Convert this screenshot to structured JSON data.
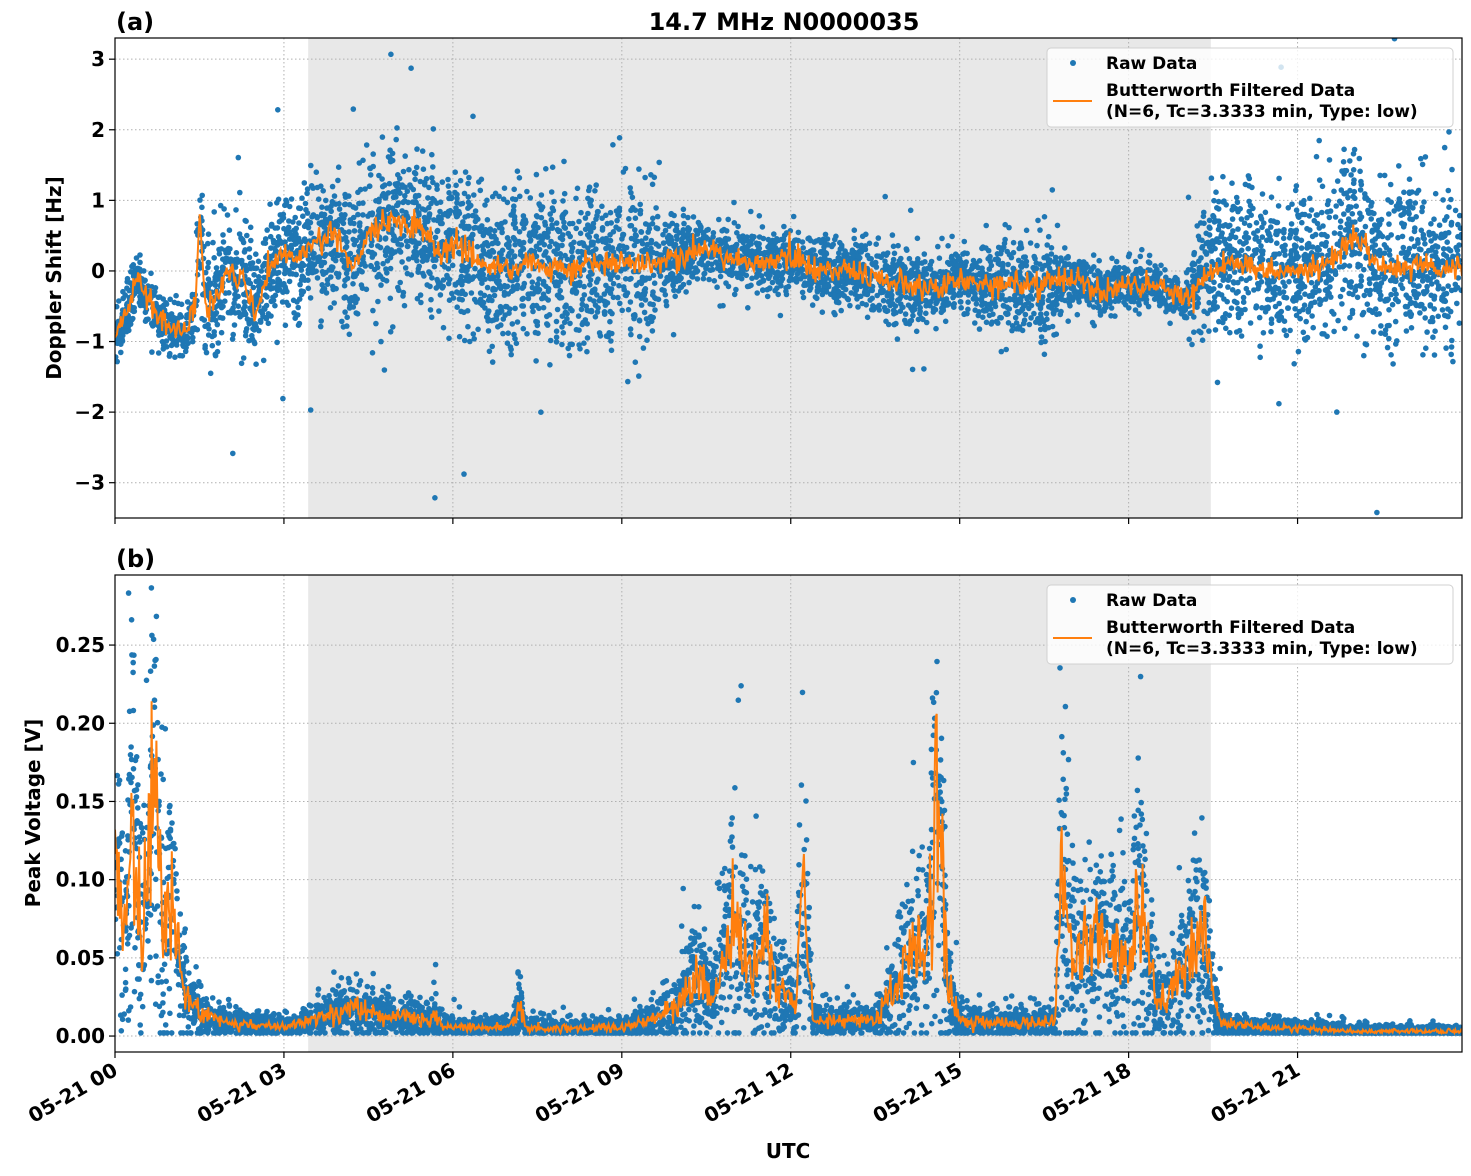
{
  "chart_data": [
    {
      "type": "scatter",
      "panel_label": "(a)",
      "title": "14.7 MHz N0000035",
      "xlabel": "",
      "ylabel": "Doppler Shift [Hz]",
      "xlim_hours": [
        0,
        23.92
      ],
      "ylim": [
        -3.5,
        3.3
      ],
      "yticks": [
        3,
        2,
        1,
        0,
        -1,
        -2,
        -3
      ],
      "ytick_labels": [
        "3",
        "2",
        "1",
        "0",
        "−1",
        "−2",
        "−3"
      ],
      "xticks_hours": [
        0,
        3,
        6,
        9,
        12,
        15,
        18,
        21
      ],
      "grid": true,
      "shaded_region_hours": [
        3.43,
        19.46
      ],
      "legend": {
        "placement": "top-right",
        "entries": [
          "Raw Data",
          "Butterworth Filtered Data",
          "(N=6, Tc=3.3333 min, Type: low)"
        ]
      },
      "series": [
        {
          "name": "Butterworth Filtered Data",
          "kind": "line",
          "color": "#ff7f0e",
          "t_hours": [
            0,
            0.25,
            0.4,
            0.5,
            0.75,
            1,
            1.25,
            1.42,
            1.5,
            1.6,
            1.75,
            2,
            2.25,
            2.5,
            2.75,
            3,
            3.25,
            3.5,
            4,
            4.25,
            4.5,
            5,
            5.5,
            5.75,
            6,
            6.5,
            7,
            7.5,
            8,
            8.5,
            9,
            9.5,
            10,
            10.5,
            11,
            11.5,
            12,
            12.5,
            13,
            13.5,
            14,
            14.5,
            15,
            15.5,
            16,
            16.5,
            17,
            17.5,
            18,
            18.5,
            19,
            19.5,
            20,
            20.5,
            21,
            21.5,
            22,
            22.5,
            23,
            23.5,
            23.92
          ],
          "values": [
            -0.9,
            -0.5,
            -0.05,
            -0.3,
            -0.6,
            -0.8,
            -0.9,
            -0.5,
            0.8,
            -0.5,
            -0.5,
            0.0,
            -0.1,
            -0.6,
            0.0,
            0.3,
            0.2,
            0.4,
            0.5,
            0.0,
            0.6,
            0.7,
            0.6,
            0.2,
            0.4,
            0.1,
            0.05,
            0.1,
            0.0,
            0.1,
            0.1,
            0.15,
            0.2,
            0.3,
            0.2,
            0.1,
            0.2,
            0.0,
            0.0,
            -0.1,
            -0.2,
            -0.25,
            -0.1,
            -0.2,
            -0.2,
            -0.2,
            -0.1,
            -0.3,
            -0.2,
            -0.2,
            -0.4,
            0.0,
            0.1,
            0.0,
            0.0,
            0.1,
            0.5,
            0.0,
            0.1,
            0.0,
            0.1
          ]
        },
        {
          "name": "Raw Data",
          "kind": "scatter",
          "color": "#1f77b4",
          "spread_t_hours": [
            0,
            1.4,
            1.5,
            3,
            6,
            9.5,
            10,
            12,
            14,
            15,
            16.5,
            17,
            19,
            19.5,
            22,
            23.92
          ],
          "spread_halfwidth": [
            0.3,
            0.35,
            0.8,
            0.8,
            1.0,
            1.0,
            0.4,
            0.4,
            0.5,
            0.4,
            0.7,
            0.35,
            0.3,
            0.9,
            1.1,
            1.0
          ]
        }
      ]
    },
    {
      "type": "scatter",
      "panel_label": "(b)",
      "xlabel": "UTC",
      "ylabel": "Peak Voltage [V]",
      "xlim_hours": [
        0,
        23.92
      ],
      "ylim": [
        -0.0102,
        0.2948
      ],
      "yticks": [
        0,
        0.05,
        0.1,
        0.15,
        0.2,
        0.25
      ],
      "ytick_labels": [
        "0.00",
        "0.05",
        "0.10",
        "0.15",
        "0.20",
        "0.25"
      ],
      "xticks_hours": [
        0,
        3,
        6,
        9,
        12,
        15,
        18,
        21
      ],
      "xtick_labels": [
        "05-21 00",
        "05-21 03",
        "05-21 06",
        "05-21 09",
        "05-21 12",
        "05-21 15",
        "05-21 18",
        "05-21 21"
      ],
      "grid": true,
      "shaded_region_hours": [
        3.43,
        19.46
      ],
      "legend": {
        "placement": "top-right",
        "entries": [
          "Raw Data",
          "Butterworth Filtered Data",
          "(N=6, Tc=3.3333 min, Type: low)"
        ]
      },
      "series": [
        {
          "name": "Butterworth Filtered Data",
          "kind": "line",
          "color": "#ff7f0e",
          "t_hours": [
            0,
            0.2,
            0.3,
            0.45,
            0.55,
            0.7,
            0.85,
            1.0,
            1.2,
            1.5,
            2,
            3,
            3.5,
            4.2,
            5,
            5.6,
            5.7,
            5.8,
            6,
            7,
            7.2,
            7.3,
            9,
            9.5,
            10,
            10.3,
            10.6,
            11,
            11.3,
            11.5,
            11.8,
            12.1,
            12.2,
            12.4,
            13.5,
            14,
            14.2,
            14.4,
            14.6,
            14.8,
            15,
            16,
            16.7,
            16.8,
            17,
            17.5,
            18,
            18.2,
            18.5,
            19,
            19.3,
            19.6,
            20,
            21,
            22,
            23.92
          ],
          "values": [
            0.1,
            0.06,
            0.15,
            0.06,
            0.09,
            0.19,
            0.07,
            0.1,
            0.03,
            0.015,
            0.008,
            0.006,
            0.01,
            0.018,
            0.012,
            0.01,
            0.016,
            0.007,
            0.006,
            0.006,
            0.02,
            0.005,
            0.005,
            0.01,
            0.02,
            0.04,
            0.02,
            0.08,
            0.04,
            0.06,
            0.03,
            0.02,
            0.1,
            0.01,
            0.01,
            0.04,
            0.06,
            0.05,
            0.15,
            0.03,
            0.01,
            0.008,
            0.01,
            0.12,
            0.05,
            0.06,
            0.05,
            0.09,
            0.02,
            0.04,
            0.07,
            0.01,
            0.006,
            0.005,
            0.003,
            0.003
          ]
        },
        {
          "name": "Raw Data",
          "kind": "scatter",
          "color": "#1f77b4",
          "relative_spread": 0.6
        }
      ]
    }
  ]
}
